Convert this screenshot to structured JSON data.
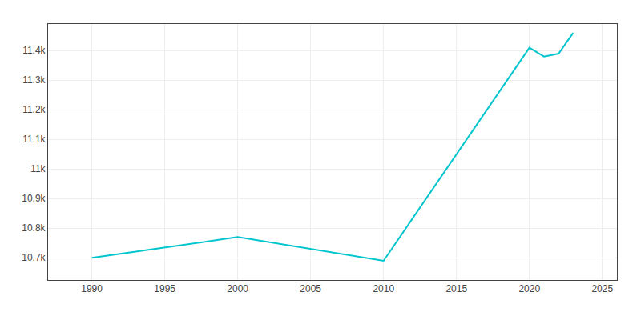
{
  "chart_data": {
    "type": "line",
    "x": [
      1990,
      2000,
      2010,
      2020,
      2021,
      2022,
      2023
    ],
    "values": [
      10700,
      10770,
      10690,
      11410,
      11380,
      11390,
      11460
    ],
    "color": "#00c5cd",
    "xlim": [
      1987,
      2026
    ],
    "ylim": [
      10625,
      11490
    ],
    "xticks": [
      1990,
      1995,
      2000,
      2005,
      2010,
      2015,
      2020,
      2025
    ],
    "yticks": [
      {
        "value": 10700,
        "label": "10.7k"
      },
      {
        "value": 10800,
        "label": "10.8k"
      },
      {
        "value": 10900,
        "label": "10.9k"
      },
      {
        "value": 11000,
        "label": "11k"
      },
      {
        "value": 11100,
        "label": "11.1k"
      },
      {
        "value": 11200,
        "label": "11.2k"
      },
      {
        "value": 11300,
        "label": "11.3k"
      },
      {
        "value": 11400,
        "label": "11.4k"
      }
    ],
    "grid": true
  }
}
